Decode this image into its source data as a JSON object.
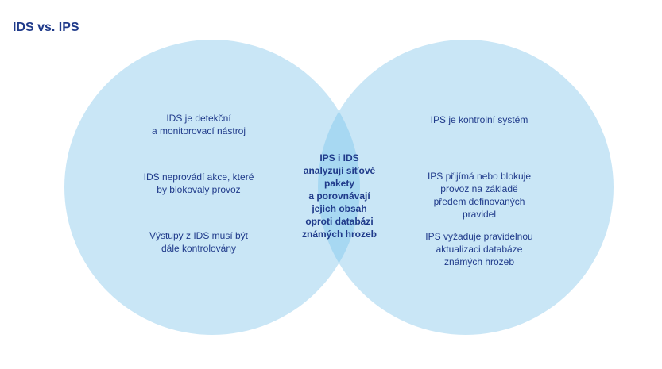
{
  "title": "IDS vs. IPS",
  "colors": {
    "circle_fill": "#c9e6f6",
    "overlap_fill": "#a7d8f2",
    "text": "#1f3a8a"
  },
  "left": {
    "items": [
      "IDS je detekční\na monitorovací nástroj",
      "IDS neprovádí akce, které\nby blokovaly provoz",
      "Výstupy z IDS musí být\ndále kontrolovány"
    ]
  },
  "center": {
    "text": "IPS i IDS\nanalyzují síťové\npakety\na porovnávají\njejich obsah\noproti databázi\nznámých hrozeb"
  },
  "right": {
    "items": [
      "IPS je kontrolní systém",
      "IPS přijímá nebo blokuje\nprovoz na základě\npředem definovaných\npravidel",
      "IPS vyžaduje pravidelnou\naktualizaci databáze\nznámých hrozeb"
    ]
  }
}
